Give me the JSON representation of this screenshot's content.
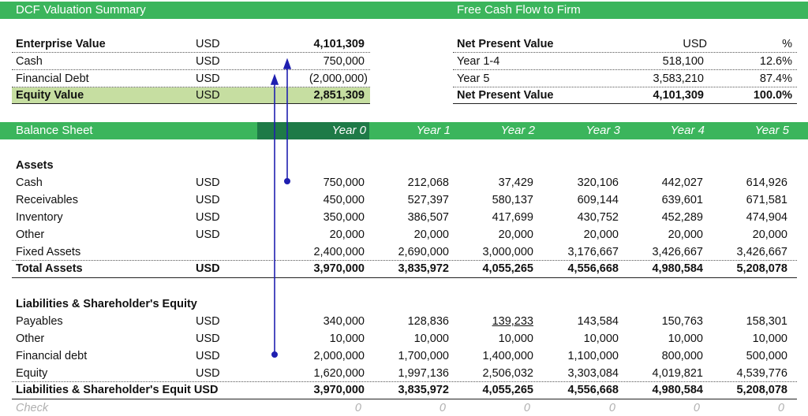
{
  "dcf": {
    "title": "DCF Valuation Summary",
    "rows": [
      {
        "label": "Enterprise Value",
        "unit": "USD",
        "value": "4,101,309"
      },
      {
        "label": "Cash",
        "unit": "USD",
        "value": "750,000"
      },
      {
        "label": "Financial Debt",
        "unit": "USD",
        "value": "(2,000,000)"
      },
      {
        "label": "Equity Value",
        "unit": "USD",
        "value": "2,851,309"
      }
    ]
  },
  "fcff": {
    "title": "Free Cash Flow to Firm",
    "header": {
      "label": "Net Present Value",
      "col1": "USD",
      "col2": "%"
    },
    "rows": [
      {
        "label": "Year 1-4",
        "usd": "518,100",
        "pct": "12.6%"
      },
      {
        "label": "Year 5",
        "usd": "3,583,210",
        "pct": "87.4%"
      },
      {
        "label": "Net Present Value",
        "usd": "4,101,309",
        "pct": "100.0%"
      }
    ]
  },
  "balance": {
    "title": "Balance Sheet",
    "years": [
      "Year 0",
      "Year 1",
      "Year 2",
      "Year 3",
      "Year 4",
      "Year 5"
    ],
    "assets_title": "Assets",
    "assets": [
      {
        "label": "Cash",
        "unit": "USD",
        "values": [
          "750,000",
          "212,068",
          "37,429",
          "320,106",
          "442,027",
          "614,926"
        ]
      },
      {
        "label": "Receivables",
        "unit": "USD",
        "values": [
          "450,000",
          "527,397",
          "580,137",
          "609,144",
          "639,601",
          "671,581"
        ]
      },
      {
        "label": "Inventory",
        "unit": "USD",
        "values": [
          "350,000",
          "386,507",
          "417,699",
          "430,752",
          "452,289",
          "474,904"
        ]
      },
      {
        "label": "Other",
        "unit": "USD",
        "values": [
          "20,000",
          "20,000",
          "20,000",
          "20,000",
          "20,000",
          "20,000"
        ]
      },
      {
        "label": "Fixed Assets",
        "unit": "",
        "values": [
          "2,400,000",
          "2,690,000",
          "3,000,000",
          "3,176,667",
          "3,426,667",
          "3,426,667"
        ]
      }
    ],
    "total_assets": {
      "label": "Total Assets",
      "unit": "USD",
      "values": [
        "3,970,000",
        "3,835,972",
        "4,055,265",
        "4,556,668",
        "4,980,584",
        "5,208,078"
      ]
    },
    "liab_title": "Liabilities & Shareholder's Equity",
    "liabilities": [
      {
        "label": "Payables",
        "unit": "USD",
        "values": [
          "340,000",
          "128,836",
          "139,233",
          "143,584",
          "150,763",
          "158,301"
        ]
      },
      {
        "label": "Other",
        "unit": "USD",
        "values": [
          "10,000",
          "10,000",
          "10,000",
          "10,000",
          "10,000",
          "10,000"
        ]
      },
      {
        "label": "Financial debt",
        "unit": "USD",
        "values": [
          "2,000,000",
          "1,700,000",
          "1,400,000",
          "1,100,000",
          "800,000",
          "500,000"
        ]
      },
      {
        "label": "Equity",
        "unit": "USD",
        "values": [
          "1,620,000",
          "1,997,136",
          "2,506,032",
          "3,303,084",
          "4,019,821",
          "4,539,776"
        ]
      }
    ],
    "total_liab": {
      "label": "Liabilities & Shareholder's Equit USD",
      "values": [
        "3,970,000",
        "3,835,972",
        "4,055,265",
        "4,556,668",
        "4,980,584",
        "5,208,078"
      ]
    },
    "check": {
      "label": "Check",
      "values": [
        "0",
        "0",
        "0",
        "0",
        "0",
        "0"
      ]
    }
  }
}
